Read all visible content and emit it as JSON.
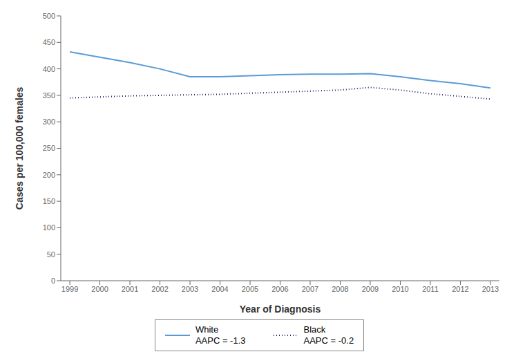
{
  "chart_data": {
    "type": "line",
    "x": [
      1999,
      2000,
      2001,
      2002,
      2003,
      2004,
      2005,
      2006,
      2007,
      2008,
      2009,
      2010,
      2011,
      2012,
      2013
    ],
    "series": [
      {
        "name": "White\nAAPC = -1.3",
        "color": "#5B9BD5",
        "line_style": "solid",
        "values": [
          432,
          422,
          412,
          400,
          385,
          385,
          387,
          389,
          390,
          390,
          391,
          385,
          378,
          372,
          364
        ]
      },
      {
        "name": "Black\nAAPC = -0.2",
        "color": "#1a1a6e",
        "line_style": "dotted",
        "values": [
          345,
          347,
          349,
          350,
          351,
          352,
          354,
          356,
          358,
          360,
          365,
          360,
          353,
          348,
          343
        ]
      }
    ],
    "x_label": "Year of Diagnosis",
    "y_label": "Cases per 100,000 females",
    "xlim": [
      1998.7,
      2013.3
    ],
    "xticks": [
      1999,
      2000,
      2001,
      2002,
      2003,
      2004,
      2005,
      2006,
      2007,
      2008,
      2009,
      2010,
      2011,
      2012,
      2013
    ],
    "ylim": [
      0,
      500
    ],
    "yticks": [
      0,
      50,
      100,
      150,
      200,
      250,
      300,
      350,
      400,
      450,
      500
    ],
    "grid": false,
    "legend": "bottom"
  }
}
